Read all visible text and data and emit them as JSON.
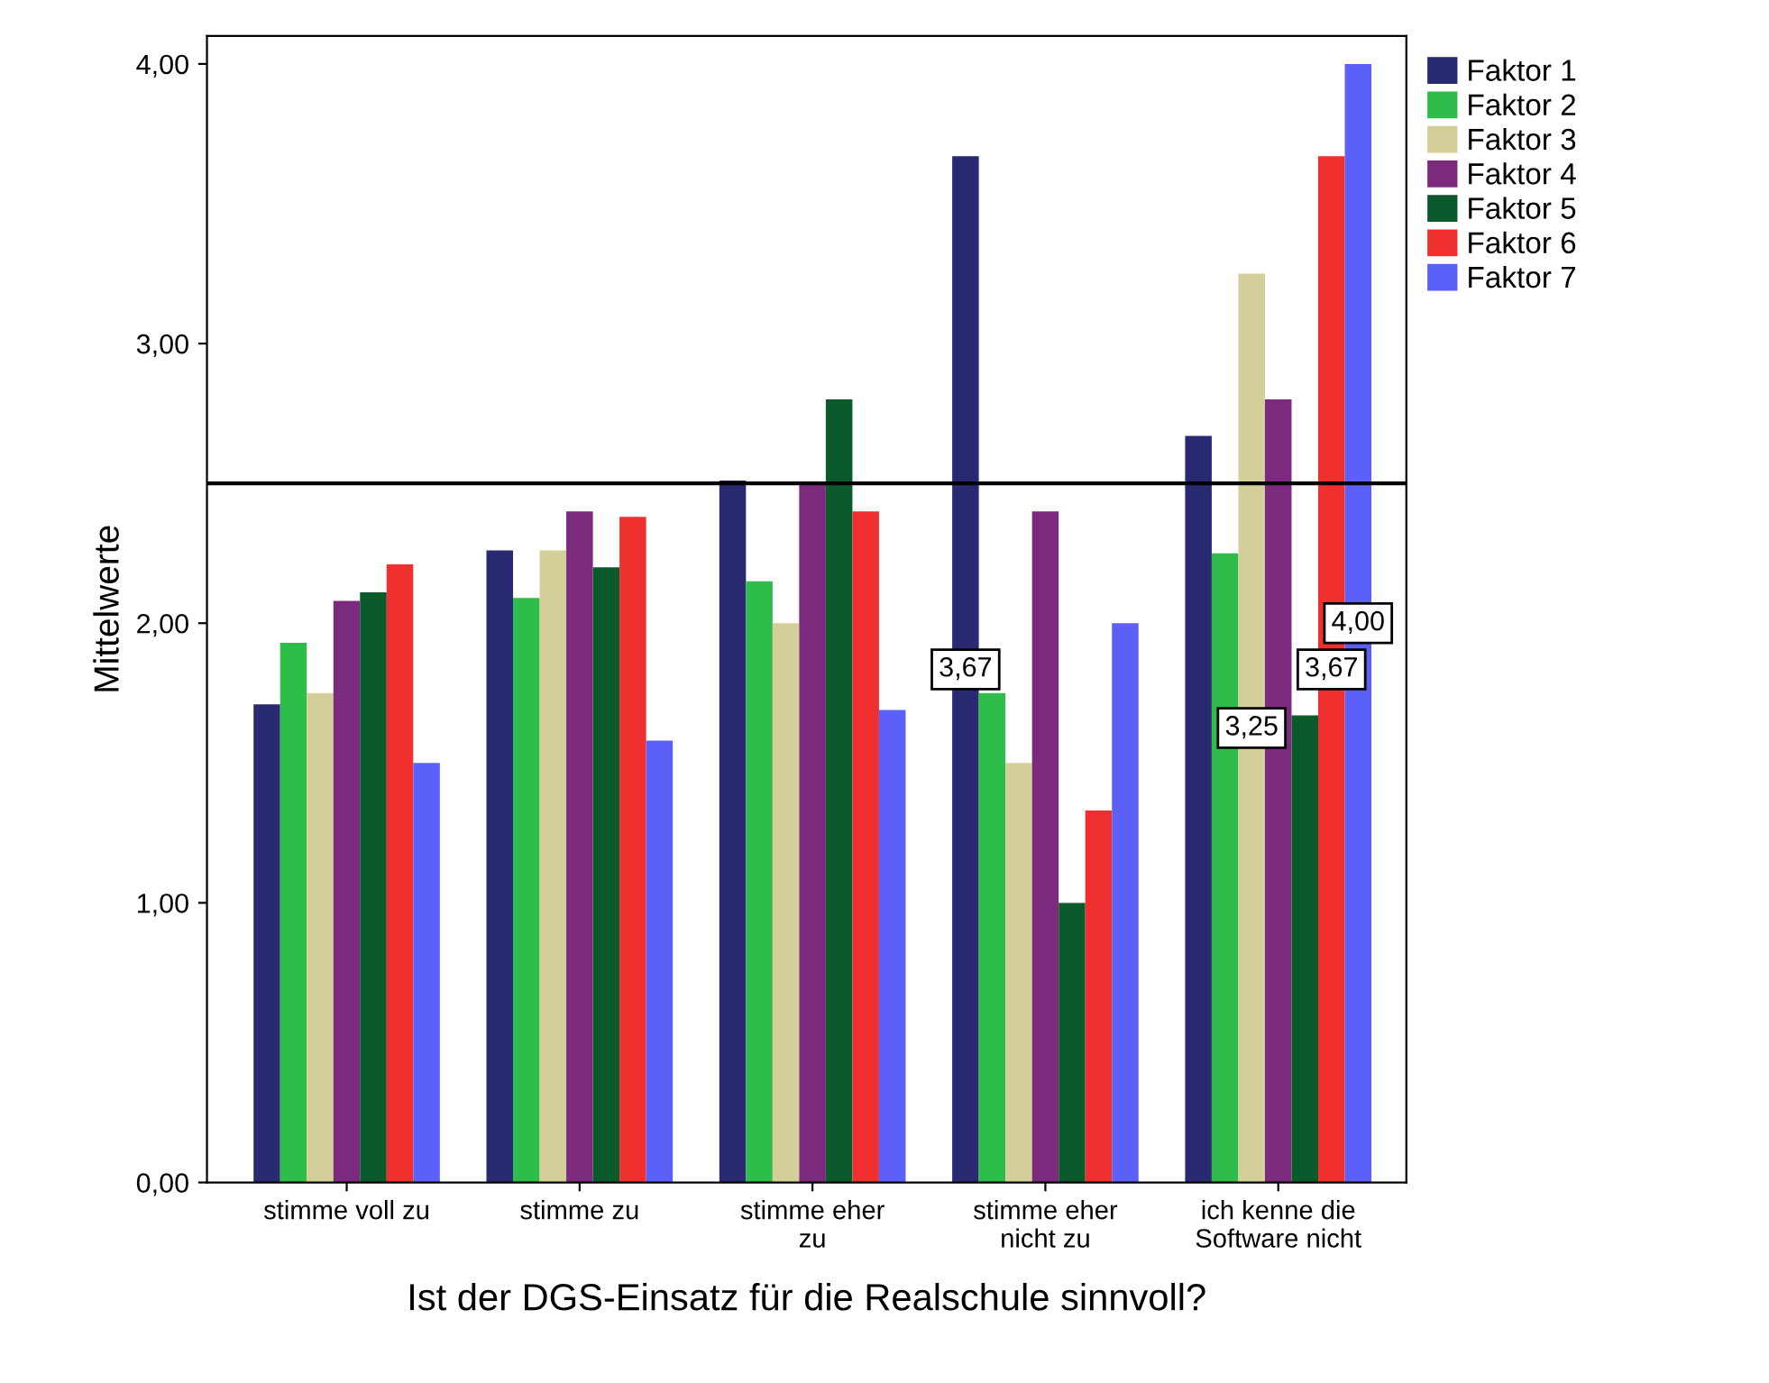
{
  "chart_data": {
    "type": "bar",
    "xlabel": "Ist der DGS-Einsatz für die Realschule sinnvoll?",
    "ylabel": "Mittelwerte",
    "categories": [
      "stimme voll zu",
      "stimme zu",
      "stimme eher\nzu",
      "stimme eher\nnicht zu",
      "ich kenne die\nSoftware nicht"
    ],
    "series": [
      {
        "name": "Faktor 1",
        "color": "#2a2a73",
        "values": [
          1.71,
          2.26,
          2.51,
          3.67,
          2.67
        ],
        "value_labels": [
          null,
          null,
          null,
          "3,67",
          null
        ]
      },
      {
        "name": "Faktor 2",
        "color": "#2ebd4a",
        "values": [
          1.93,
          2.09,
          2.15,
          1.75,
          2.25
        ]
      },
      {
        "name": "Faktor 3",
        "color": "#d4cf98",
        "values": [
          1.75,
          2.26,
          2.0,
          1.5,
          3.25
        ],
        "value_labels": [
          null,
          null,
          null,
          null,
          "3,25"
        ]
      },
      {
        "name": "Faktor 4",
        "color": "#7b2a7e",
        "values": [
          2.08,
          2.4,
          2.5,
          2.4,
          2.8
        ]
      },
      {
        "name": "Faktor 5",
        "color": "#0b5a2b",
        "values": [
          2.11,
          2.2,
          2.8,
          1.0,
          1.67
        ]
      },
      {
        "name": "Faktor 6",
        "color": "#f0302f",
        "values": [
          2.21,
          2.38,
          2.4,
          1.33,
          3.67
        ],
        "value_labels": [
          null,
          null,
          null,
          null,
          "3,67"
        ]
      },
      {
        "name": "Faktor 7",
        "color": "#5b60f8",
        "values": [
          1.5,
          1.58,
          1.69,
          2.0,
          4.0
        ],
        "value_labels": [
          null,
          null,
          null,
          null,
          "4,00"
        ]
      }
    ],
    "ylim": [
      0,
      4.1
    ],
    "yticks": [
      {
        "value": 0,
        "label": "0,00"
      },
      {
        "value": 1,
        "label": "1,00"
      },
      {
        "value": 2,
        "label": "2,00"
      },
      {
        "value": 3,
        "label": "3,00"
      },
      {
        "value": 4,
        "label": "4,00"
      }
    ],
    "ref_lines": [
      {
        "axis": "y",
        "value": 2.5,
        "color": "#000000"
      }
    ],
    "legend": "top right outside",
    "grid": false
  }
}
